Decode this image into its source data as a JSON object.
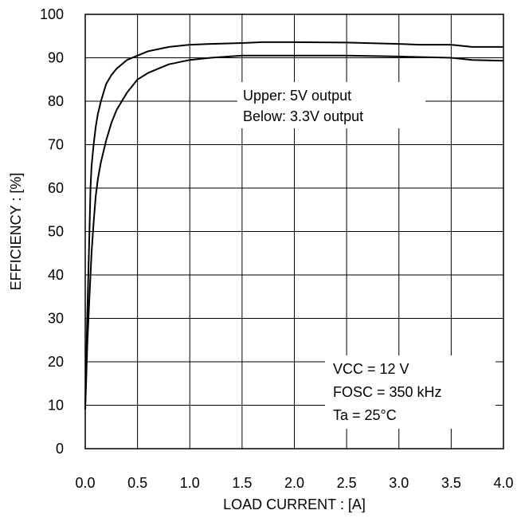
{
  "chart_data": {
    "type": "line",
    "xlabel": "LOAD CURRENT : [A]",
    "ylabel": "EFFICIENCY : [%]",
    "xlim": [
      0,
      4
    ],
    "ylim": [
      0,
      100
    ],
    "x_ticks": [
      "0.0",
      "0.5",
      "1.0",
      "1.5",
      "2.0",
      "2.5",
      "3.0",
      "3.5",
      "4.0"
    ],
    "y_ticks": [
      "0",
      "10",
      "20",
      "30",
      "40",
      "50",
      "60",
      "70",
      "80",
      "90",
      "100"
    ],
    "grid": true,
    "series": [
      {
        "x": [
          0.0,
          0.02,
          0.04,
          0.05,
          0.06,
          0.08,
          0.1,
          0.12,
          0.15,
          0.2,
          0.25,
          0.3,
          0.4,
          0.5,
          0.6,
          0.7,
          0.8,
          1.0,
          1.2,
          1.5,
          1.7,
          2.0,
          2.5,
          3.0,
          3.2,
          3.5,
          3.7,
          4.0
        ],
        "y": [
          10,
          31,
          50,
          60,
          65,
          70,
          74,
          77,
          80,
          84,
          86,
          87.5,
          89.5,
          90.5,
          91.5,
          92,
          92.5,
          93,
          93.2,
          93.4,
          93.6,
          93.6,
          93.5,
          93.2,
          93.0,
          93.0,
          92.5,
          92.5
        ]
      },
      {
        "x": [
          0.0,
          0.02,
          0.04,
          0.06,
          0.08,
          0.1,
          0.12,
          0.15,
          0.2,
          0.25,
          0.3,
          0.4,
          0.5,
          0.6,
          0.7,
          0.8,
          1.0,
          1.2,
          1.5,
          2.0,
          2.5,
          3.0,
          3.5,
          3.7,
          4.0
        ],
        "y": [
          9,
          24,
          35,
          45,
          52,
          58,
          62,
          66,
          71,
          75,
          78,
          82,
          85,
          86.5,
          87.5,
          88.5,
          89.5,
          90,
          90.5,
          90.5,
          90.5,
          90.3,
          90.0,
          89.5,
          89.3
        ]
      }
    ],
    "annotations": {
      "series_note": [
        "Upper: 5V output",
        "Below: 3.3V output"
      ],
      "conditions": [
        "VCC = 12 V",
        "FOSC = 350 kHz",
        "Ta = 25°C"
      ]
    }
  }
}
